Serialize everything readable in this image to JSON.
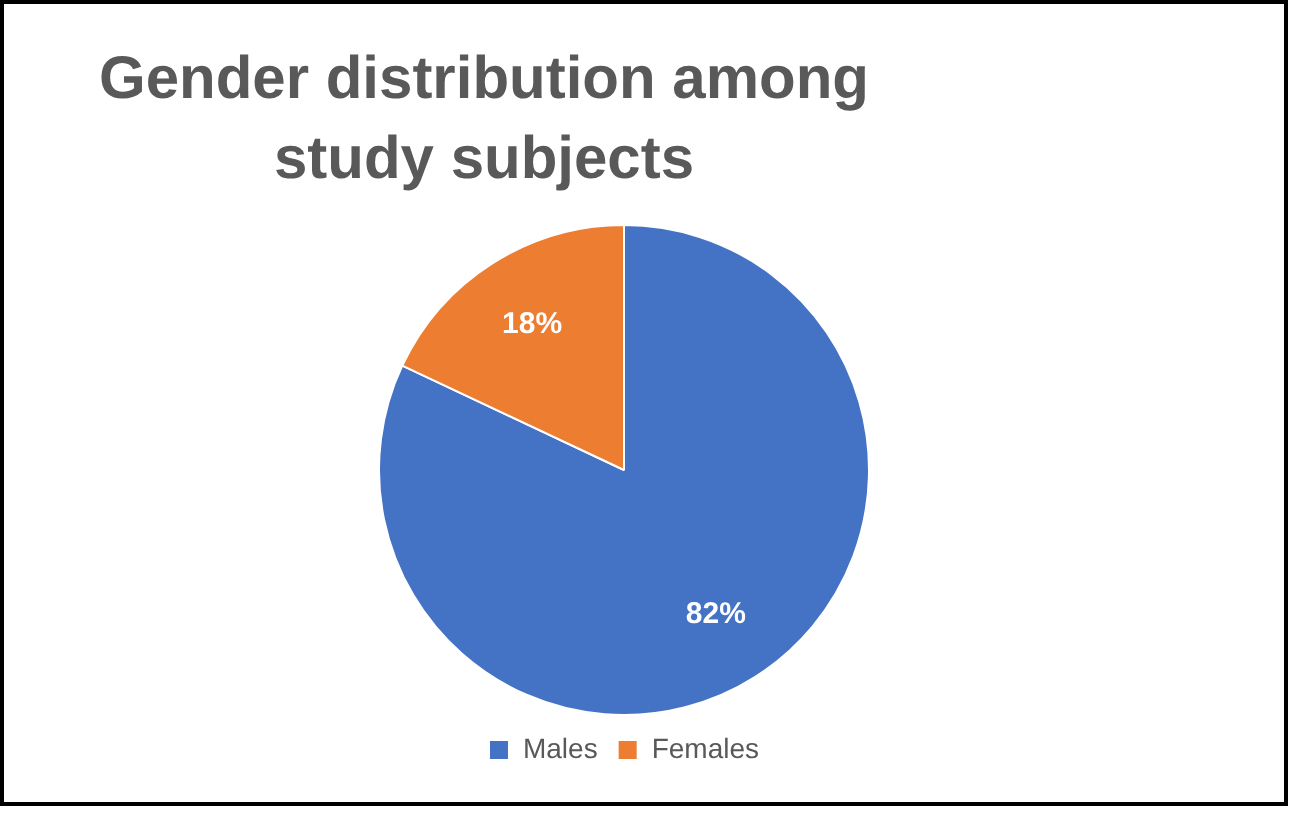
{
  "chart_data": {
    "type": "pie",
    "title": "Gender distribution among study subjects",
    "categories": [
      "Males",
      "Females"
    ],
    "values": [
      82,
      18
    ],
    "value_labels": [
      "82%",
      "18%"
    ],
    "colors": [
      "#4472c4",
      "#ed7d31"
    ],
    "legend": "bottom"
  }
}
